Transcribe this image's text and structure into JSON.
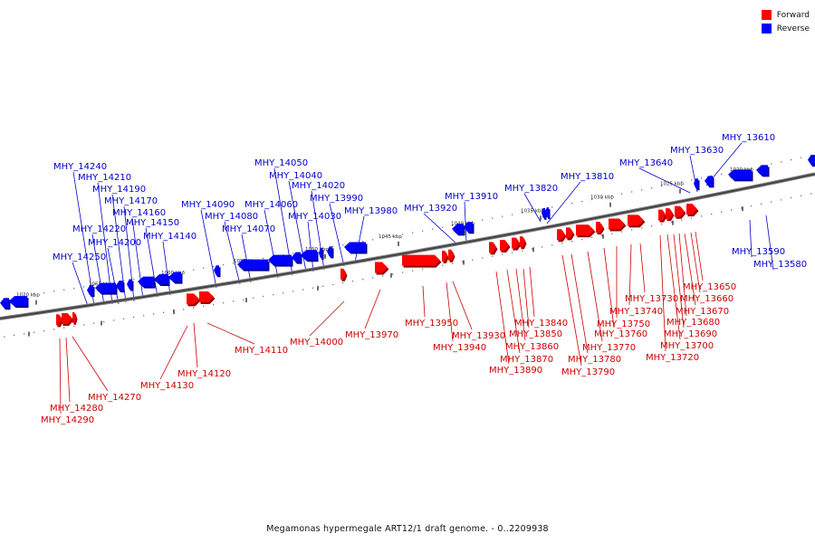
{
  "legend": {
    "forward": {
      "label": "Forward",
      "color": "#ff0000"
    },
    "reverse": {
      "label": "Reverse",
      "color": "#0000ff"
    }
  },
  "caption": "Megamonas hypermegale ART12/1 draft genome. - 0..2209938",
  "axis": {
    "color": "#555555",
    "ticks": [
      "1020 kbp",
      "1025 kbp",
      "1030 kbp",
      "1035 kbp",
      "1040 kbp",
      "1045 kbp",
      "1050 kbp",
      "1055 kbp",
      "1060 kbp",
      "1065 kbp",
      "1070 kbp"
    ]
  },
  "reverse_labels": [
    "MHY_13580",
    "MHY_13590",
    "MHY_13610",
    "MHY_13630",
    "MHY_13640",
    "MHY_13810",
    "MHY_13820",
    "MHY_13910",
    "MHY_13920",
    "MHY_13980",
    "MHY_13990",
    "MHY_14020",
    "MHY_14030",
    "MHY_14040",
    "MHY_14050",
    "MHY_14060",
    "MHY_14070",
    "MHY_14080",
    "MHY_14090",
    "MHY_14140",
    "MHY_14150",
    "MHY_14160",
    "MHY_14170",
    "MHY_14190",
    "MHY_14200",
    "MHY_14210",
    "MHY_14220",
    "MHY_14240",
    "MHY_14250"
  ],
  "forward_labels": [
    "MHY_13650",
    "MHY_13660",
    "MHY_13670",
    "MHY_13680",
    "MHY_13690",
    "MHY_13700",
    "MHY_13720",
    "MHY_13730",
    "MHY_13740",
    "MHY_13750",
    "MHY_13760",
    "MHY_13770",
    "MHY_13780",
    "MHY_13790",
    "MHY_13840",
    "MHY_13850",
    "MHY_13860",
    "MHY_13870",
    "MHY_13890",
    "MHY_13930",
    "MHY_13940",
    "MHY_13950",
    "MHY_13970",
    "MHY_14000",
    "MHY_14110",
    "MHY_14120",
    "MHY_14130",
    "MHY_14270",
    "MHY_14280",
    "MHY_14290"
  ]
}
